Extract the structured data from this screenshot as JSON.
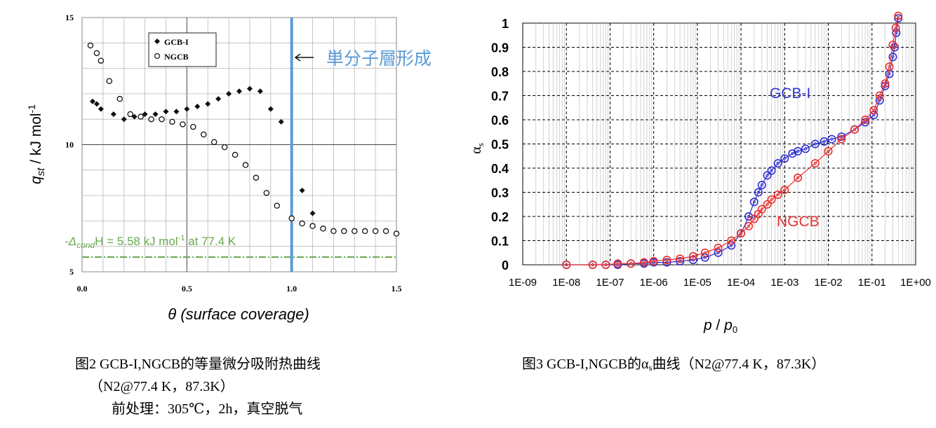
{
  "chart_data": [
    {
      "type": "scatter",
      "xlabel": "θ (surface coverage)",
      "ylabel": {
        "q": "q",
        "sub": "st",
        "unit": " / kJ mol",
        "sup": "-1"
      },
      "xlim": [
        0,
        1.5
      ],
      "ylim": [
        5,
        15
      ],
      "xticks": [
        "0.0",
        "0.5",
        "1.0",
        "1.5"
      ],
      "yticks": [
        "5",
        "10",
        "15"
      ],
      "grid": true,
      "legend_position": "top-left",
      "series": [
        {
          "name": "GCB-I",
          "marker": "filled-diamond",
          "x": [
            0.05,
            0.07,
            0.09,
            0.15,
            0.2,
            0.25,
            0.3,
            0.35,
            0.4,
            0.45,
            0.5,
            0.55,
            0.6,
            0.65,
            0.7,
            0.75,
            0.8,
            0.85,
            0.9,
            0.95,
            1.05,
            1.1
          ],
          "y": [
            11.7,
            11.6,
            11.4,
            11.2,
            11.0,
            11.1,
            11.2,
            11.2,
            11.3,
            11.3,
            11.4,
            11.5,
            11.6,
            11.8,
            12.0,
            12.1,
            12.2,
            12.1,
            11.4,
            10.9,
            8.2,
            7.3
          ]
        },
        {
          "name": "NGCB",
          "marker": "open-circle",
          "x": [
            0.04,
            0.07,
            0.09,
            0.13,
            0.18,
            0.23,
            0.28,
            0.33,
            0.38,
            0.43,
            0.48,
            0.53,
            0.58,
            0.63,
            0.68,
            0.73,
            0.78,
            0.83,
            0.88,
            0.93,
            1.0,
            1.05,
            1.1,
            1.15,
            1.2,
            1.25,
            1.3,
            1.35,
            1.4,
            1.45,
            1.5
          ],
          "y": [
            13.9,
            13.6,
            13.3,
            12.5,
            11.8,
            11.2,
            11.1,
            11.0,
            11.0,
            10.9,
            10.8,
            10.7,
            10.4,
            10.1,
            9.9,
            9.6,
            9.2,
            8.7,
            8.1,
            7.6,
            7.1,
            6.9,
            6.8,
            6.7,
            6.6,
            6.6,
            6.6,
            6.6,
            6.6,
            6.6,
            6.5
          ]
        }
      ],
      "annotations": {
        "monolayer_x": 1.0,
        "monolayer_label": "単分子層形成",
        "monolayer_color": "#5b9bd5",
        "condensation_y": 5.58,
        "condensation_prefix": "-Δ",
        "condensation_sub": "cond",
        "condensation_text": "H = 5.58 kJ mol",
        "condensation_sup": "-1",
        "condensation_suffix": " at 77.4 K",
        "condensation_color": "#6aa84f"
      }
    },
    {
      "type": "line",
      "xlabel": {
        "p": "p",
        "slash": " / ",
        "p0": "p",
        "sub": "0"
      },
      "ylabel": "α",
      "ylabel_sub": "s",
      "xscale": "log",
      "xlim": [
        1e-09,
        1
      ],
      "ylim": [
        0,
        1
      ],
      "xticks": [
        "1E-09",
        "1E-08",
        "1E-07",
        "1E-06",
        "1E-05",
        "1E-04",
        "1E-03",
        "1E-02",
        "1E-01",
        "1E+00"
      ],
      "yticks": [
        "0",
        "0.1",
        "0.2",
        "0.3",
        "0.4",
        "0.5",
        "0.6",
        "0.7",
        "0.8",
        "0.9",
        "1"
      ],
      "grid": true,
      "series": [
        {
          "name": "GCB-I",
          "color": "#2f2fd0",
          "x": [
            1e-08,
            4e-08,
            8e-08,
            1.5e-07,
            3e-07,
            6e-07,
            1e-06,
            2e-06,
            4e-06,
            8e-06,
            1.5e-05,
            3e-05,
            6e-05,
            0.0001,
            0.00015,
            0.0002,
            0.00025,
            0.0003,
            0.0004,
            0.0005,
            0.0007,
            0.001,
            0.0015,
            0.002,
            0.003,
            0.005,
            0.008,
            0.012,
            0.02,
            0.04,
            0.07,
            0.11,
            0.15,
            0.2,
            0.25,
            0.3,
            0.33,
            0.36,
            0.4
          ],
          "y": [
            0,
            0,
            0,
            0,
            0.005,
            0.005,
            0.01,
            0.01,
            0.015,
            0.02,
            0.03,
            0.05,
            0.08,
            0.13,
            0.2,
            0.26,
            0.3,
            0.33,
            0.37,
            0.39,
            0.42,
            0.44,
            0.46,
            0.47,
            0.48,
            0.5,
            0.51,
            0.52,
            0.53,
            0.56,
            0.59,
            0.62,
            0.68,
            0.74,
            0.79,
            0.86,
            0.9,
            0.96,
            1.02
          ]
        },
        {
          "name": "NGCB",
          "color": "#e83030",
          "x": [
            1e-08,
            4e-08,
            8e-08,
            1.5e-07,
            3e-07,
            6e-07,
            1e-06,
            2e-06,
            4e-06,
            8e-06,
            1.5e-05,
            3e-05,
            6e-05,
            0.0001,
            0.00015,
            0.0002,
            0.00025,
            0.0003,
            0.0004,
            0.0005,
            0.0007,
            0.001,
            0.002,
            0.005,
            0.01,
            0.02,
            0.04,
            0.07,
            0.11,
            0.15,
            0.2,
            0.25,
            0.3,
            0.35,
            0.4
          ],
          "y": [
            0,
            0,
            0,
            0.005,
            0.005,
            0.01,
            0.015,
            0.02,
            0.025,
            0.035,
            0.05,
            0.07,
            0.1,
            0.13,
            0.16,
            0.19,
            0.21,
            0.23,
            0.25,
            0.27,
            0.29,
            0.31,
            0.36,
            0.42,
            0.47,
            0.52,
            0.56,
            0.6,
            0.64,
            0.7,
            0.75,
            0.82,
            0.91,
            0.98,
            1.03
          ]
        }
      ]
    }
  ],
  "captions": {
    "fig2_line1": "图2 GCB-I,NGCB的等量微分吸附热曲线",
    "fig2_line2": "（N2@77.4 K，87.3K）",
    "fig2_line3": "前处理：305℃，2h，真空脱气",
    "fig3_prefix": "图3 GCB-I,NGCB的α",
    "fig3_sub": "s",
    "fig3_suffix": "曲线（N2@77.4 K，87.3K）"
  }
}
